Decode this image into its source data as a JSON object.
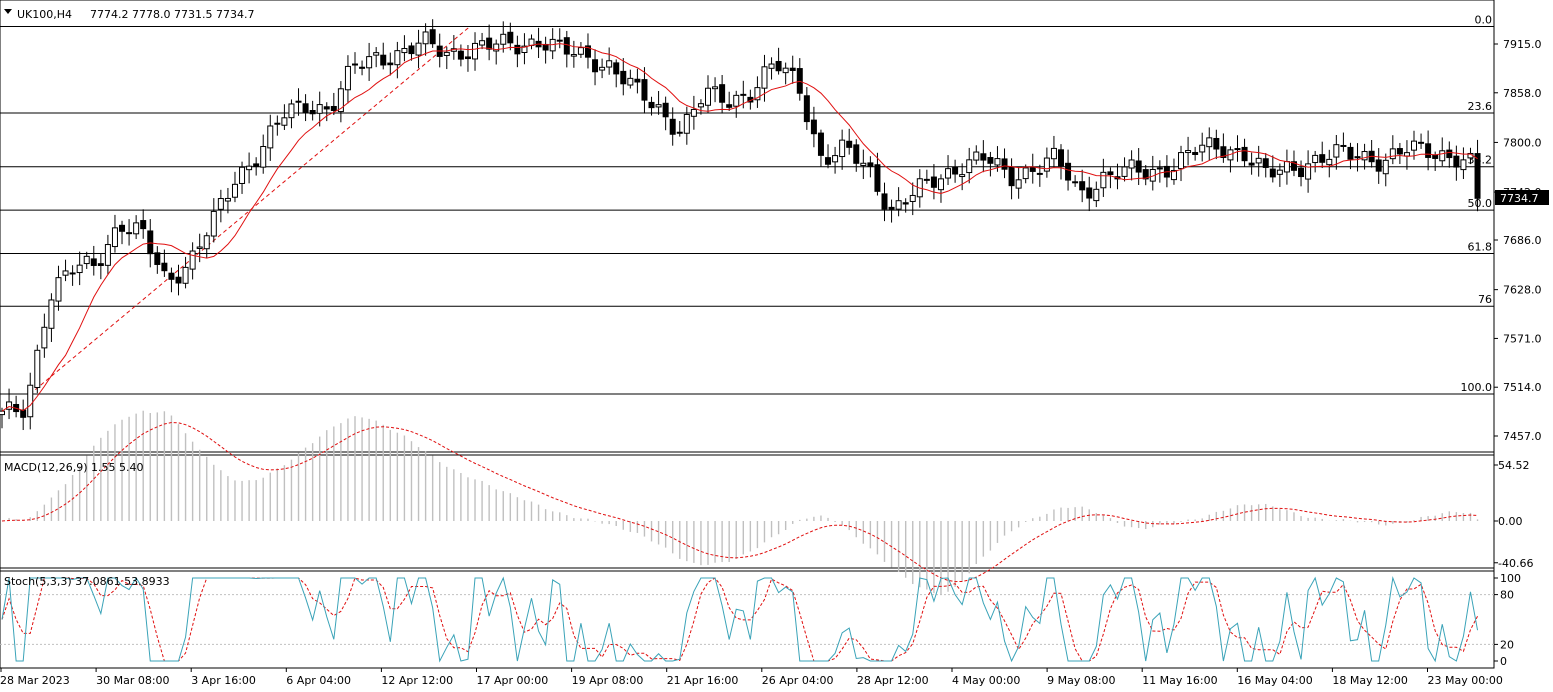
{
  "header": {
    "symbol": "UK100,H4",
    "ohlc": "7774.2 7778.0 7731.5 7734.7"
  },
  "price_panel": {
    "y_ticks": [
      "7915.0",
      "7858.0",
      "7800.0",
      "7742.0",
      "7686.0",
      "7628.0",
      "7571.0",
      "7514.0",
      "7457.0"
    ],
    "current_price": "7734.7",
    "fib_levels": [
      {
        "label": "0.0",
        "price": 7935.5
      },
      {
        "label": "23.6",
        "price": 7834.4
      },
      {
        "label": "38.2",
        "price": 7771.6
      },
      {
        "label": "50.0",
        "price": 7720.9
      },
      {
        "label": "61.8",
        "price": 7670.2
      },
      {
        "label": "76",
        "price": 7608.6
      },
      {
        "label": "100.0",
        "price": 7506.0
      }
    ]
  },
  "macd_panel": {
    "title": "MACD(12,26,9) 1.55 5.40",
    "y_ticks": [
      "54.52",
      "0.00",
      "-40.66"
    ]
  },
  "stoch_panel": {
    "title": "Stoch(5,3,3) 37.0861 53.8933",
    "y_ticks": [
      "100",
      "80",
      "20",
      "0"
    ]
  },
  "x_axis": {
    "labels": [
      "28 Mar 2023",
      "30 Mar 08:00",
      "3 Apr 16:00",
      "6 Apr 04:00",
      "12 Apr 12:00",
      "17 Apr 00:00",
      "19 Apr 08:00",
      "21 Apr 16:00",
      "26 Apr 04:00",
      "28 Apr 12:00",
      "4 May 00:00",
      "9 May 08:00",
      "11 May 16:00",
      "16 May 04:00",
      "18 May 12:00",
      "23 May 00:00"
    ]
  },
  "chart_data": [
    {
      "type": "candlestick",
      "title": "UK100,H4",
      "ylim": [
        7440,
        7950
      ],
      "close_anchors": [
        7480,
        7490,
        7620,
        7650,
        7660,
        7705,
        7690,
        7640,
        7660,
        7705,
        7760,
        7790,
        7830,
        7845,
        7840,
        7885,
        7900,
        7905,
        7915,
        7905,
        7910,
        7912,
        7915,
        7920,
        7905,
        7900,
        7890,
        7860,
        7840,
        7815,
        7855,
        7850,
        7860,
        7890,
        7870,
        7780,
        7790,
        7770,
        7720,
        7740,
        7760,
        7775,
        7780,
        7760,
        7770,
        7780,
        7740,
        7760,
        7765,
        7765,
        7775,
        7790,
        7795,
        7790,
        7760,
        7770,
        7780,
        7785,
        7785,
        7780,
        7790,
        7790,
        7785,
        7770
      ],
      "last_close": 7734.7,
      "moving_average": "red line"
    },
    {
      "type": "histogram",
      "title": "MACD(12,26,9)",
      "main": 1.55,
      "signal": 5.4,
      "ylim": [
        -40.66,
        54.52
      ]
    },
    {
      "type": "line",
      "title": "Stoch(5,3,3)",
      "main": 37.0861,
      "signal": 53.8933,
      "ylim": [
        0,
        100
      ],
      "levels": [
        20,
        80
      ]
    }
  ],
  "colors": {
    "bull_candle": "#ffffff",
    "bear_candle": "#000000",
    "ma_line": "#e01010",
    "macd_hist": "#c0c0c0",
    "macd_signal": "#e01010",
    "stoch_main": "#3aa3b8",
    "stoch_signal": "#e01010"
  }
}
